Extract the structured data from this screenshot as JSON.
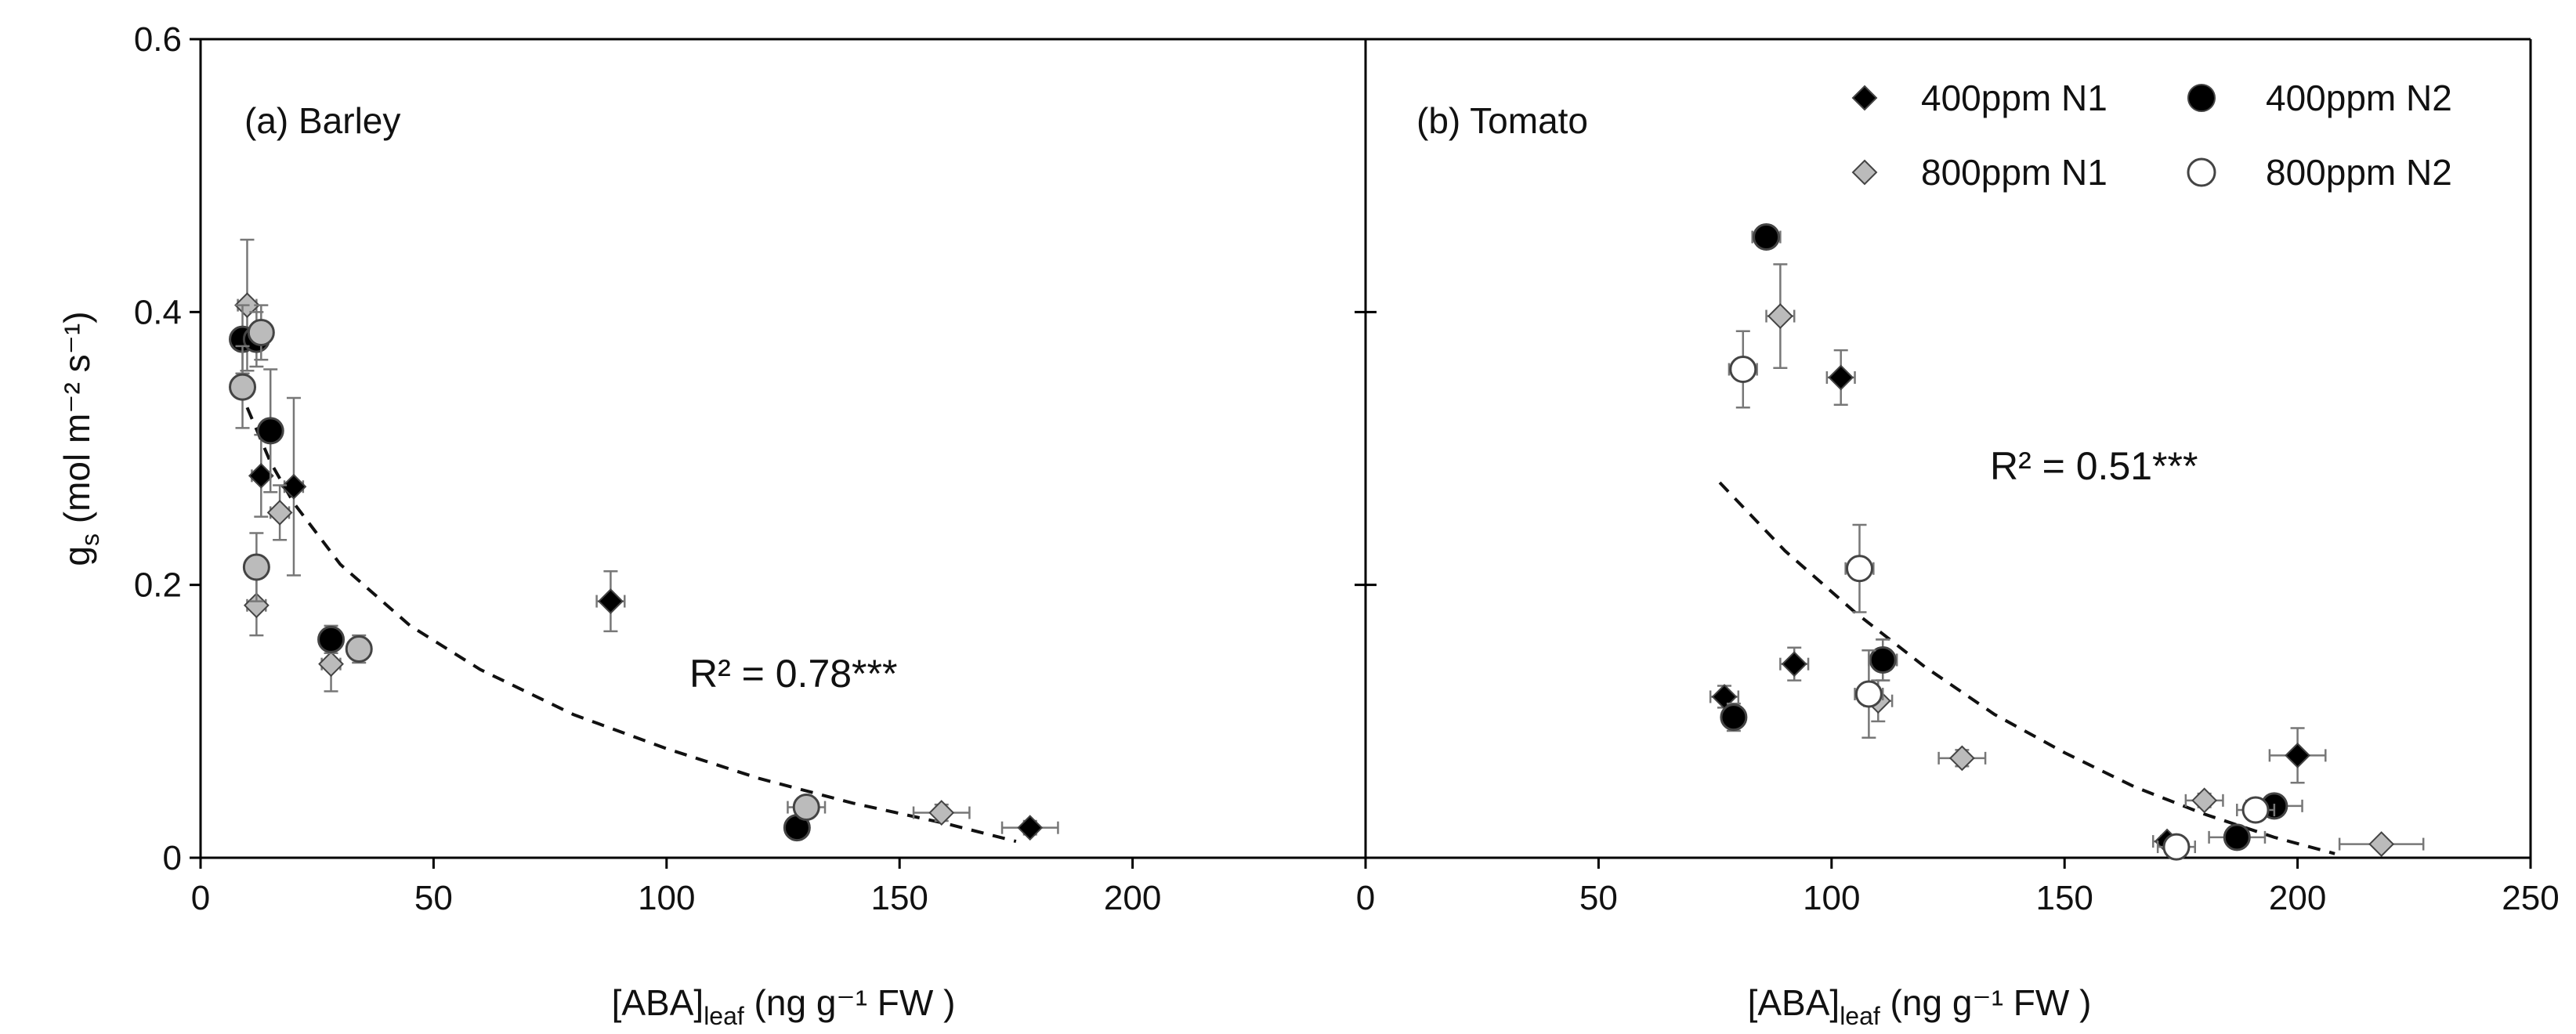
{
  "chart_data": [
    {
      "type": "scatter",
      "panel_label": "(a) Barley",
      "xlabel": "[ABA]",
      "xlabel_sub": "leaf",
      "xlabel_units": " (ng g⁻¹ FW )",
      "ylabel": "g",
      "ylabel_sub": "s",
      "ylabel_units": " (mol m⁻² s⁻¹)",
      "xlim": [
        0,
        250
      ],
      "ylim": [
        0,
        0.6
      ],
      "xticks": [
        "0",
        "50",
        "100",
        "150",
        "200"
      ],
      "xtick_values": [
        0,
        50,
        100,
        150,
        200
      ],
      "yticks": [
        "0",
        "0.2",
        "0.4",
        "0.6"
      ],
      "ytick_values": [
        0,
        0.2,
        0.4,
        0.6
      ],
      "r2_text": "R² = 0.78***",
      "fit": {
        "style": "dashed",
        "points": [
          [
            10,
            0.33
          ],
          [
            15,
            0.29
          ],
          [
            20,
            0.26
          ],
          [
            30,
            0.215
          ],
          [
            45,
            0.17
          ],
          [
            60,
            0.138
          ],
          [
            80,
            0.105
          ],
          [
            100,
            0.08
          ],
          [
            120,
            0.058
          ],
          [
            140,
            0.04
          ],
          [
            160,
            0.025
          ],
          [
            175,
            0.012
          ]
        ]
      },
      "series": [
        {
          "name": "400ppm N1",
          "marker": "diamond",
          "fill": "#000000",
          "points": [
            {
              "x": 13,
              "y": 0.28,
              "xerr": 2,
              "yerr": 0.03
            },
            {
              "x": 20,
              "y": 0.272,
              "xerr": 2,
              "yerr": 0.065
            },
            {
              "x": 88,
              "y": 0.188,
              "xerr": 3,
              "yerr": 0.022
            },
            {
              "x": 178,
              "y": 0.022,
              "xerr": 6,
              "yerr": 0.005
            }
          ]
        },
        {
          "name": "800ppm N1",
          "marker": "diamond",
          "fill": "#bbbbbb",
          "points": [
            {
              "x": 10,
              "y": 0.405,
              "xerr": 2,
              "yerr": 0.048
            },
            {
              "x": 12,
              "y": 0.185,
              "xerr": 2,
              "yerr": 0.022
            },
            {
              "x": 17,
              "y": 0.253,
              "xerr": 2,
              "yerr": 0.02
            },
            {
              "x": 28,
              "y": 0.142,
              "xerr": 2,
              "yerr": 0.02
            },
            {
              "x": 159,
              "y": 0.033,
              "xerr": 6,
              "yerr": 0.006
            }
          ]
        },
        {
          "name": "400ppm N2",
          "marker": "circle",
          "fill": "#000000",
          "points": [
            {
              "x": 9,
              "y": 0.38,
              "xerr": 2,
              "yerr": 0.025
            },
            {
              "x": 12,
              "y": 0.38,
              "xerr": 2,
              "yerr": 0.02
            },
            {
              "x": 15,
              "y": 0.313,
              "xerr": 2,
              "yerr": 0.045
            },
            {
              "x": 28,
              "y": 0.16,
              "xerr": 2,
              "yerr": 0.01
            },
            {
              "x": 128,
              "y": 0.022,
              "xerr": 2,
              "yerr": 0.004
            }
          ]
        },
        {
          "name": "800ppm N2",
          "marker": "circle",
          "fill": "#bbbbbb",
          "points": [
            {
              "x": 9,
              "y": 0.345,
              "xerr": 2,
              "yerr": 0.03
            },
            {
              "x": 13,
              "y": 0.385,
              "xerr": 2,
              "yerr": 0.02
            },
            {
              "x": 12,
              "y": 0.213,
              "xerr": 2,
              "yerr": 0.025
            },
            {
              "x": 34,
              "y": 0.153,
              "xerr": 2,
              "yerr": 0.01
            },
            {
              "x": 130,
              "y": 0.037,
              "xerr": 4,
              "yerr": 0.008
            }
          ]
        }
      ]
    },
    {
      "type": "scatter",
      "panel_label": "(b) Tomato",
      "xlabel": "[ABA]",
      "xlabel_sub": "leaf",
      "xlabel_units": " (ng g⁻¹ FW )",
      "xlim": [
        0,
        250
      ],
      "ylim": [
        0,
        0.6
      ],
      "xticks": [
        "0",
        "50",
        "100",
        "150",
        "200",
        "250"
      ],
      "xtick_values": [
        0,
        50,
        100,
        150,
        200,
        250
      ],
      "r2_text": "R² = 0.51***",
      "fit": {
        "style": "dashed",
        "points": [
          [
            76,
            0.275
          ],
          [
            90,
            0.225
          ],
          [
            105,
            0.18
          ],
          [
            120,
            0.14
          ],
          [
            135,
            0.105
          ],
          [
            150,
            0.077
          ],
          [
            165,
            0.052
          ],
          [
            180,
            0.032
          ],
          [
            195,
            0.015
          ],
          [
            208,
            0.003
          ]
        ]
      },
      "series": [
        {
          "name": "400ppm N1",
          "marker": "diamond",
          "fill": "#000000",
          "points": [
            {
              "x": 77,
              "y": 0.118,
              "xerr": 3,
              "yerr": 0.008
            },
            {
              "x": 92,
              "y": 0.142,
              "xerr": 3,
              "yerr": 0.012
            },
            {
              "x": 102,
              "y": 0.352,
              "xerr": 3,
              "yerr": 0.02
            },
            {
              "x": 111,
              "y": 0.145,
              "xerr": 3,
              "yerr": 0.015
            },
            {
              "x": 172,
              "y": 0.012,
              "xerr": 3,
              "yerr": 0.004
            },
            {
              "x": 200,
              "y": 0.075,
              "xerr": 6,
              "yerr": 0.02
            }
          ]
        },
        {
          "name": "800ppm N1",
          "marker": "diamond",
          "fill": "#bbbbbb",
          "points": [
            {
              "x": 89,
              "y": 0.397,
              "xerr": 3,
              "yerr": 0.038
            },
            {
              "x": 110,
              "y": 0.115,
              "xerr": 3,
              "yerr": 0.015
            },
            {
              "x": 128,
              "y": 0.073,
              "xerr": 5,
              "yerr": 0.006
            },
            {
              "x": 180,
              "y": 0.042,
              "xerr": 4,
              "yerr": 0.005
            },
            {
              "x": 218,
              "y": 0.01,
              "xerr": 9,
              "yerr": 0.003
            }
          ]
        },
        {
          "name": "400ppm N2",
          "marker": "circle",
          "fill": "#000000",
          "points": [
            {
              "x": 79,
              "y": 0.103,
              "xerr": 2,
              "yerr": 0.01
            },
            {
              "x": 86,
              "y": 0.455,
              "xerr": 3,
              "yerr": 0.006
            },
            {
              "x": 111,
              "y": 0.145,
              "xerr": 3,
              "yerr": 0.015
            },
            {
              "x": 187,
              "y": 0.015,
              "xerr": 6,
              "yerr": 0.004
            },
            {
              "x": 195,
              "y": 0.038,
              "xerr": 6,
              "yerr": 0.006
            }
          ]
        },
        {
          "name": "800ppm N2",
          "marker": "circle",
          "fill": "#ffffff",
          "points": [
            {
              "x": 81,
              "y": 0.358,
              "xerr": 3,
              "yerr": 0.028
            },
            {
              "x": 106,
              "y": 0.212,
              "xerr": 3,
              "yerr": 0.032
            },
            {
              "x": 108,
              "y": 0.12,
              "xerr": 3,
              "yerr": 0.032
            },
            {
              "x": 174,
              "y": 0.008,
              "xerr": 4,
              "yerr": 0.004
            },
            {
              "x": 191,
              "y": 0.035,
              "xerr": 4,
              "yerr": 0.005
            }
          ]
        }
      ]
    }
  ],
  "legend": {
    "placement": "top-right",
    "entries": [
      {
        "label": "400ppm N1",
        "marker": "diamond",
        "fill": "#000000"
      },
      {
        "label": "400ppm N2",
        "marker": "circle",
        "fill": "#000000"
      },
      {
        "label": "800ppm N1",
        "marker": "diamond",
        "fill": "#bbbbbb"
      },
      {
        "label": "800ppm N2",
        "marker": "circle",
        "fill": "#ffffff"
      }
    ]
  },
  "colors": {
    "axis": "#000000",
    "errorbar": "#777777",
    "marker_edge": "#444444"
  }
}
